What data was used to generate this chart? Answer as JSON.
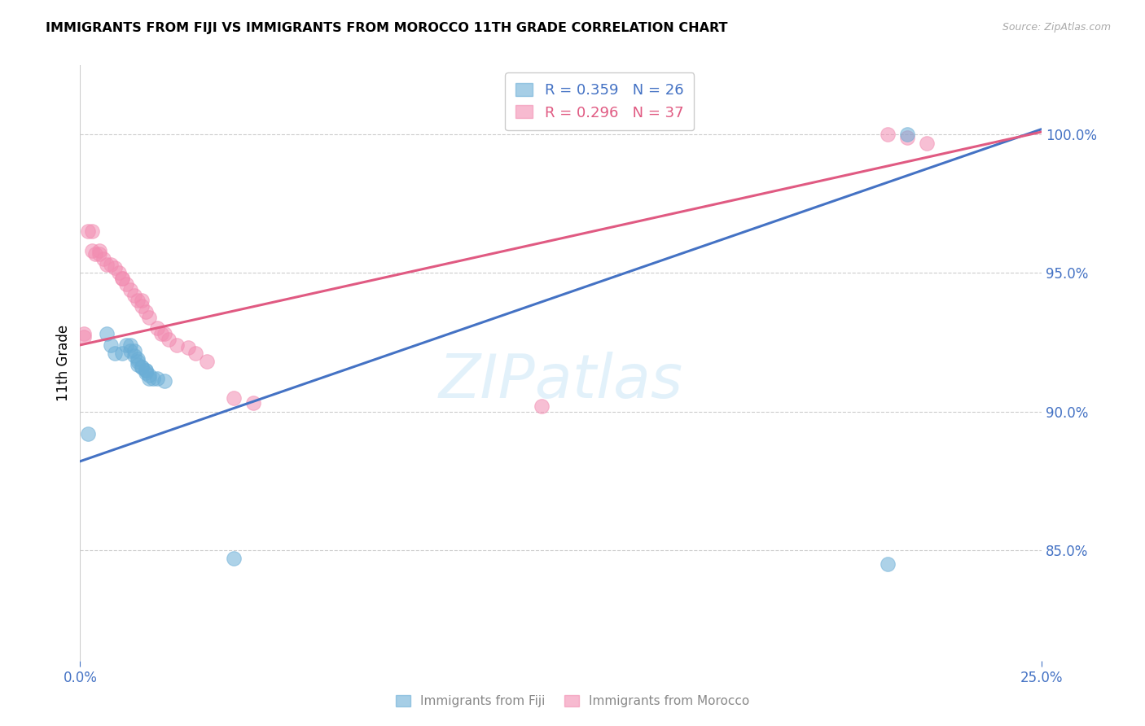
{
  "title": "IMMIGRANTS FROM FIJI VS IMMIGRANTS FROM MOROCCO 11TH GRADE CORRELATION CHART",
  "source": "Source: ZipAtlas.com",
  "ylabel": "11th Grade",
  "ytick_labels": [
    "100.0%",
    "95.0%",
    "90.0%",
    "85.0%"
  ],
  "ytick_values": [
    1.0,
    0.95,
    0.9,
    0.85
  ],
  "xlim": [
    0.0,
    0.25
  ],
  "ylim": [
    0.81,
    1.025
  ],
  "fiji_color": "#6baed6",
  "morocco_color": "#f28cb1",
  "fiji_line_color": "#4472c4",
  "morocco_line_color": "#e05a82",
  "fiji_label": "Immigrants from Fiji",
  "morocco_label": "Immigrants from Morocco",
  "fiji_R": 0.359,
  "fiji_N": 26,
  "morocco_R": 0.296,
  "morocco_N": 37,
  "watermark": "ZIPatlas",
  "fiji_line_x0": 0.0,
  "fiji_line_y0": 0.882,
  "fiji_line_x1": 0.25,
  "fiji_line_y1": 1.002,
  "morocco_line_x0": 0.0,
  "morocco_line_y0": 0.924,
  "morocco_line_x1": 0.25,
  "morocco_line_y1": 1.001,
  "fiji_x": [
    0.002,
    0.007,
    0.008,
    0.009,
    0.011,
    0.012,
    0.013,
    0.013,
    0.014,
    0.014,
    0.015,
    0.015,
    0.015,
    0.016,
    0.016,
    0.017,
    0.017,
    0.017,
    0.018,
    0.018,
    0.019,
    0.02,
    0.022,
    0.04,
    0.21,
    0.215
  ],
  "fiji_y": [
    0.892,
    0.928,
    0.924,
    0.921,
    0.921,
    0.924,
    0.924,
    0.922,
    0.922,
    0.92,
    0.919,
    0.918,
    0.917,
    0.916,
    0.916,
    0.915,
    0.915,
    0.914,
    0.913,
    0.912,
    0.912,
    0.912,
    0.911,
    0.847,
    0.845,
    1.0
  ],
  "morocco_x": [
    0.001,
    0.001,
    0.002,
    0.003,
    0.003,
    0.004,
    0.005,
    0.005,
    0.006,
    0.007,
    0.008,
    0.009,
    0.01,
    0.011,
    0.011,
    0.012,
    0.013,
    0.014,
    0.015,
    0.016,
    0.016,
    0.017,
    0.018,
    0.02,
    0.021,
    0.022,
    0.023,
    0.025,
    0.028,
    0.03,
    0.033,
    0.04,
    0.045,
    0.12,
    0.21,
    0.215,
    0.22
  ],
  "morocco_y": [
    0.928,
    0.927,
    0.965,
    0.965,
    0.958,
    0.957,
    0.957,
    0.958,
    0.955,
    0.953,
    0.953,
    0.952,
    0.95,
    0.948,
    0.948,
    0.946,
    0.944,
    0.942,
    0.94,
    0.94,
    0.938,
    0.936,
    0.934,
    0.93,
    0.928,
    0.928,
    0.926,
    0.924,
    0.923,
    0.921,
    0.918,
    0.905,
    0.903,
    0.902,
    1.0,
    0.999,
    0.997
  ]
}
